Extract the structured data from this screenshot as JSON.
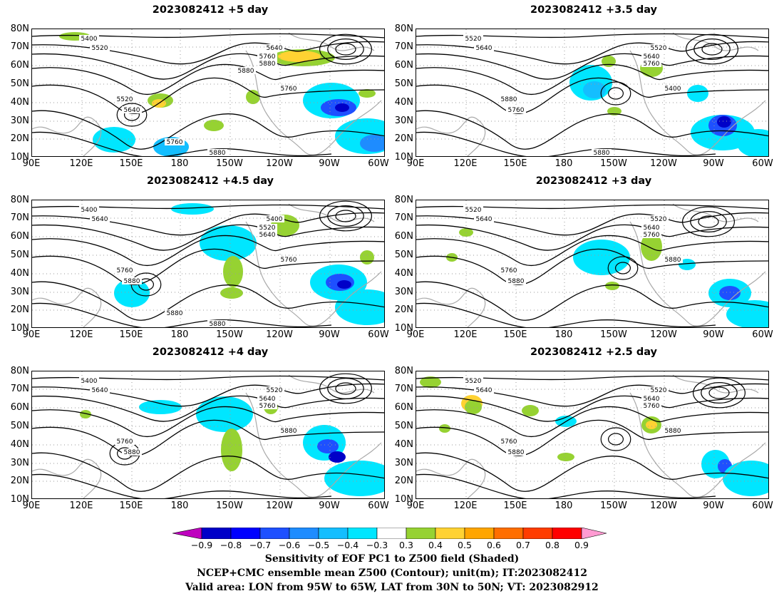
{
  "panels": [
    {
      "title": "2023082412 +5 day",
      "contours": [
        "5400",
        "5520",
        "5640",
        "5760",
        "5880",
        "5520",
        "5640",
        "5760",
        "5880",
        "5760",
        "5880"
      ]
    },
    {
      "title": "2023082412 +3.5 day",
      "contours": [
        "5520",
        "5640",
        "5520",
        "5640",
        "5760",
        "5880",
        "5760",
        "5400",
        "5880"
      ]
    },
    {
      "title": "2023082412 +4.5 day",
      "contours": [
        "5400",
        "5640",
        "5400",
        "5520",
        "5640",
        "5760",
        "5880",
        "5760",
        "5880",
        "5880"
      ]
    },
    {
      "title": "2023082412 +3 day",
      "contours": [
        "5520",
        "5640",
        "5520",
        "5640",
        "5760",
        "5760",
        "5880",
        "5880"
      ]
    },
    {
      "title": "2023082412 +4 day",
      "contours": [
        "5400",
        "5640",
        "5520",
        "5640",
        "5760",
        "5760",
        "5880",
        "5880"
      ]
    },
    {
      "title": "2023082412 +2.5 day",
      "contours": [
        "5520",
        "5640",
        "5520",
        "5640",
        "5760",
        "5760",
        "5880",
        "5880"
      ]
    }
  ],
  "lat_labels": [
    "80N",
    "70N",
    "60N",
    "50N",
    "40N",
    "30N",
    "20N",
    "10N"
  ],
  "lon_labels": [
    "90E",
    "120E",
    "150E",
    "180",
    "150W",
    "120W",
    "90W",
    "60W"
  ],
  "colorbar": {
    "labels": [
      "-0.9",
      "-0.8",
      "-0.7",
      "-0.6",
      "-0.5",
      "-0.4",
      "-0.3",
      "0.3",
      "0.4",
      "0.5",
      "0.6",
      "0.7",
      "0.8",
      "0.9"
    ],
    "colors": [
      "#bf00bf",
      "#0000c8",
      "#0000ff",
      "#1e50ff",
      "#1e8cff",
      "#14beff",
      "#00e6ff",
      "#ffffff",
      "#96d232",
      "#ffd232",
      "#ffa500",
      "#ff6e00",
      "#ff3c00",
      "#ff0000",
      "#ff9bd2"
    ]
  },
  "captions": {
    "line1": "Sensitivity of EOF PC1 to Z500 field (Shaded)",
    "line2": "NCEP+CMC ensemble mean Z500 (Contour); unit(m); IT:2023082412",
    "line3": "Valid area: LON from 95W to 65W, LAT from 30N to 50N; VT: 2023082912"
  }
}
